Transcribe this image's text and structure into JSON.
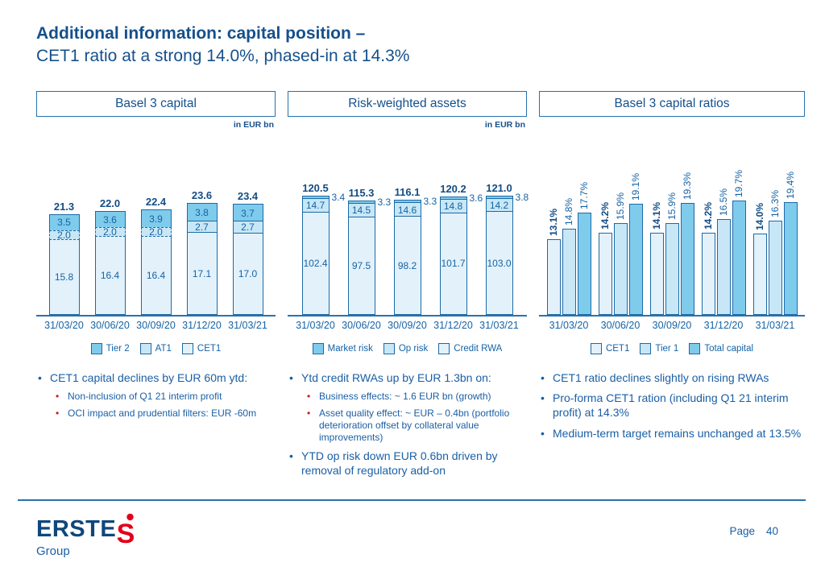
{
  "title": {
    "line1": "Additional information: capital position –",
    "line2": "CET1 ratio at a strong 14.0%, phased-in at 14.3%"
  },
  "panels": [
    {
      "header": "Basel 3 capital",
      "unit": "in EUR bn"
    },
    {
      "header": "Risk-weighted assets",
      "unit": "in EUR bn"
    },
    {
      "header": "Basel 3 capital ratios",
      "unit": ""
    }
  ],
  "chart_data": [
    {
      "type": "bar",
      "stacked": true,
      "title": "Basel 3 capital",
      "ylabel": "in EUR bn",
      "categories": [
        "31/03/20",
        "30/06/20",
        "30/09/20",
        "31/12/20",
        "31/03/21"
      ],
      "series": [
        {
          "name": "CET1",
          "color": "#e3f1fa",
          "values": [
            15.8,
            16.4,
            16.4,
            17.1,
            17.0
          ]
        },
        {
          "name": "AT1",
          "color": "#c8e7f6",
          "values": [
            2.0,
            2.0,
            2.0,
            2.7,
            2.7
          ],
          "dashed": [
            true,
            true,
            true,
            false,
            false
          ]
        },
        {
          "name": "Tier 2",
          "color": "#7fcbec",
          "values": [
            3.5,
            3.6,
            3.9,
            3.8,
            3.7
          ]
        }
      ],
      "totals": [
        21.3,
        22.0,
        22.4,
        23.6,
        23.4
      ],
      "legend": [
        {
          "label": "Tier 2",
          "color": "#7fcbec"
        },
        {
          "label": "AT1",
          "color": "#c8e7f6"
        },
        {
          "label": "CET1",
          "color": "#e3f1fa"
        }
      ]
    },
    {
      "type": "bar",
      "stacked": true,
      "title": "Risk-weighted assets",
      "ylabel": "in EUR bn",
      "categories": [
        "31/03/20",
        "30/06/20",
        "30/09/20",
        "31/12/20",
        "31/03/21"
      ],
      "series": [
        {
          "name": "Credit RWA",
          "color": "#e3f1fa",
          "values": [
            102.4,
            97.5,
            98.2,
            101.7,
            103.0
          ]
        },
        {
          "name": "Op risk",
          "color": "#c8e7f6",
          "values": [
            14.7,
            14.5,
            14.6,
            14.8,
            14.2
          ]
        },
        {
          "name": "Market risk",
          "color": "#7fcbec",
          "values": [
            3.4,
            3.3,
            3.3,
            3.6,
            3.8
          ]
        }
      ],
      "totals": [
        120.5,
        115.3,
        116.1,
        120.2,
        121.0
      ],
      "legend": [
        {
          "label": "Market risk",
          "color": "#7fcbec"
        },
        {
          "label": "Op risk",
          "color": "#c8e7f6"
        },
        {
          "label": "Credit RWA",
          "color": "#e3f1fa"
        }
      ]
    },
    {
      "type": "bar",
      "stacked": false,
      "title": "Basel 3 capital ratios",
      "unit_suffix": "%",
      "categories": [
        "31/03/20",
        "30/06/20",
        "30/09/20",
        "31/12/20",
        "31/03/21"
      ],
      "series": [
        {
          "name": "CET1",
          "color": "#e3f1fa",
          "values": [
            13.1,
            14.2,
            14.1,
            14.2,
            14.0
          ],
          "emphasis": true
        },
        {
          "name": "Tier 1",
          "color": "#c8e7f6",
          "values": [
            14.8,
            15.9,
            15.9,
            16.5,
            16.3
          ]
        },
        {
          "name": "Total capital",
          "color": "#7fcbec",
          "values": [
            17.7,
            19.1,
            19.3,
            19.7,
            19.4
          ]
        }
      ],
      "legend": [
        {
          "label": "CET1",
          "color": "#e3f1fa"
        },
        {
          "label": "Tier 1",
          "color": "#c8e7f6"
        },
        {
          "label": "Total capital",
          "color": "#7fcbec"
        }
      ]
    }
  ],
  "notes": [
    [
      {
        "level": 1,
        "text": "CET1 capital declines by EUR 60m ytd:"
      },
      {
        "level": 2,
        "text": "Non-inclusion of Q1 21 interim profit"
      },
      {
        "level": 2,
        "text": "OCI impact and prudential filters: EUR -60m"
      }
    ],
    [
      {
        "level": 1,
        "text": "Ytd credit RWAs up by EUR 1.3bn on:"
      },
      {
        "level": 2,
        "text": "Business effects: ~ 1.6 EUR bn (growth)"
      },
      {
        "level": 2,
        "text": "Asset quality effect: ~ EUR – 0.4bn (portfolio deterioration offset by collateral value improvements)"
      },
      {
        "level": 1,
        "text": "YTD op risk down EUR 0.6bn driven by removal of regulatory add-on"
      }
    ],
    [
      {
        "level": 1,
        "text": "CET1 ratio declines slightly on rising RWAs"
      },
      {
        "level": 1,
        "text": "Pro-forma CET1 ration (including Q1 21 interim profit) at 14.3%"
      },
      {
        "level": 1,
        "text": "Medium-term target remains unchanged at 13.5%"
      }
    ]
  ],
  "footer": {
    "logo_text": "ERSTE",
    "logo_sub": "Group",
    "page_label": "Page",
    "page_number": "40"
  },
  "colors": {
    "navy_title": "#15508c",
    "text_blue": "#1563a5",
    "border_blue": "#1c6aa6",
    "axis_blue": "#2a72ad",
    "sub_bullet_red": "#cc1719",
    "erste_red": "#e2001a",
    "fill_lightest": "#e3f1fa",
    "fill_light": "#c8e7f6",
    "fill_medium": "#7fcbec"
  }
}
